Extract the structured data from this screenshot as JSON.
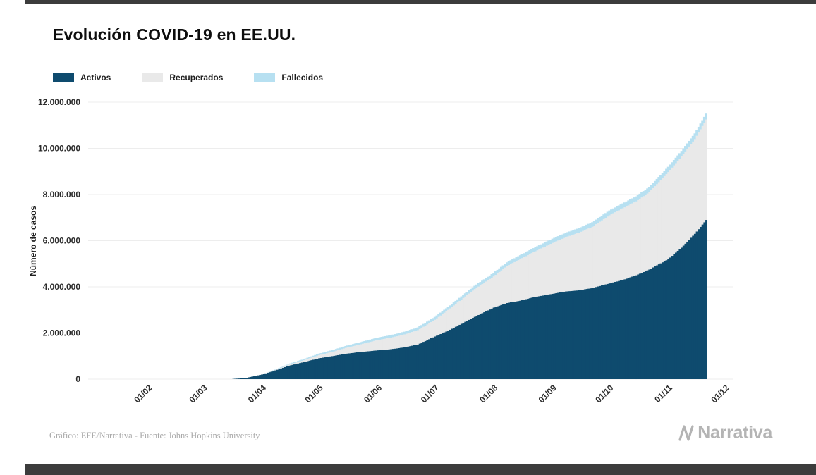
{
  "chart_data": {
    "type": "area",
    "stacked": true,
    "title": "Evolución COVID-19 en EE.UU.",
    "ylabel": "Número de casos",
    "ylim": [
      0,
      12000000
    ],
    "x_domain": [
      0,
      340
    ],
    "grid": "horizontal",
    "legend_position": "top-left",
    "series_order": [
      "activos",
      "recuperados",
      "fallecidos"
    ],
    "colors": {
      "activos": "#0e4b6e",
      "recuperados": "#e9e9e9",
      "fallecidos": "#b7e0f1"
    },
    "y_ticks": [
      {
        "value": 0,
        "label": "0"
      },
      {
        "value": 2000000,
        "label": "2.000.000"
      },
      {
        "value": 4000000,
        "label": "4.000.000"
      },
      {
        "value": 6000000,
        "label": "6.000.000"
      },
      {
        "value": 8000000,
        "label": "8.000.000"
      },
      {
        "value": 10000000,
        "label": "10.000.000"
      },
      {
        "value": 12000000,
        "label": "12.000.000"
      }
    ],
    "x_ticks": [
      {
        "day": 31,
        "label": "01/02"
      },
      {
        "day": 60,
        "label": "01/03"
      },
      {
        "day": 91,
        "label": "01/04"
      },
      {
        "day": 121,
        "label": "01/05"
      },
      {
        "day": 152,
        "label": "01/06"
      },
      {
        "day": 182,
        "label": "01/07"
      },
      {
        "day": 213,
        "label": "01/08"
      },
      {
        "day": 244,
        "label": "01/09"
      },
      {
        "day": 274,
        "label": "01/10"
      },
      {
        "day": 305,
        "label": "01/11"
      },
      {
        "day": 335,
        "label": "01/12"
      }
    ],
    "points": [
      {
        "day": 21,
        "activos": 0,
        "recuperados": 0,
        "fallecidos": 0
      },
      {
        "day": 61,
        "activos": 100,
        "recuperados": 10,
        "fallecidos": 6
      },
      {
        "day": 75,
        "activos": 4000,
        "recuperados": 100,
        "fallecidos": 90
      },
      {
        "day": 82,
        "activos": 42000,
        "recuperados": 400,
        "fallecidos": 600
      },
      {
        "day": 91,
        "activos": 200000,
        "recuperados": 8500,
        "fallecidos": 5100
      },
      {
        "day": 98,
        "activos": 380000,
        "recuperados": 21000,
        "fallecidos": 14700
      },
      {
        "day": 105,
        "activos": 580000,
        "recuperados": 50000,
        "fallecidos": 28000
      },
      {
        "day": 112,
        "activos": 720000,
        "recuperados": 75000,
        "fallecidos": 46000
      },
      {
        "day": 121,
        "activos": 905000,
        "recuperados": 135000,
        "fallecidos": 65000
      },
      {
        "day": 128,
        "activos": 1000000,
        "recuperados": 180000,
        "fallecidos": 77000
      },
      {
        "day": 135,
        "activos": 1100000,
        "recuperados": 250000,
        "fallecidos": 86000
      },
      {
        "day": 142,
        "activos": 1170000,
        "recuperados": 320000,
        "fallecidos": 95000
      },
      {
        "day": 152,
        "activos": 1250000,
        "recuperados": 445000,
        "fallecidos": 106000
      },
      {
        "day": 159,
        "activos": 1300000,
        "recuperados": 500000,
        "fallecidos": 111000
      },
      {
        "day": 166,
        "activos": 1380000,
        "recuperados": 560000,
        "fallecidos": 116000
      },
      {
        "day": 173,
        "activos": 1500000,
        "recuperados": 620000,
        "fallecidos": 120000
      },
      {
        "day": 182,
        "activos": 1850000,
        "recuperados": 720000,
        "fallecidos": 127000
      },
      {
        "day": 189,
        "activos": 2100000,
        "recuperados": 900000,
        "fallecidos": 131000
      },
      {
        "day": 196,
        "activos": 2400000,
        "recuperados": 1050000,
        "fallecidos": 137000
      },
      {
        "day": 203,
        "activos": 2700000,
        "recuperados": 1200000,
        "fallecidos": 143000
      },
      {
        "day": 213,
        "activos": 3100000,
        "recuperados": 1350000,
        "fallecidos": 155000
      },
      {
        "day": 220,
        "activos": 3300000,
        "recuperados": 1600000,
        "fallecidos": 161000
      },
      {
        "day": 227,
        "activos": 3400000,
        "recuperados": 1800000,
        "fallecidos": 169000
      },
      {
        "day": 234,
        "activos": 3550000,
        "recuperados": 1950000,
        "fallecidos": 176000
      },
      {
        "day": 244,
        "activos": 3700000,
        "recuperados": 2200000,
        "fallecidos": 187000
      },
      {
        "day": 251,
        "activos": 3800000,
        "recuperados": 2350000,
        "fallecidos": 190000
      },
      {
        "day": 258,
        "activos": 3850000,
        "recuperados": 2500000,
        "fallecidos": 196000
      },
      {
        "day": 265,
        "activos": 3950000,
        "recuperados": 2650000,
        "fallecidos": 201000
      },
      {
        "day": 274,
        "activos": 4150000,
        "recuperados": 2950000,
        "fallecidos": 209000
      },
      {
        "day": 281,
        "activos": 4300000,
        "recuperados": 3100000,
        "fallecidos": 213000
      },
      {
        "day": 288,
        "activos": 4500000,
        "recuperados": 3200000,
        "fallecidos": 218000
      },
      {
        "day": 295,
        "activos": 4750000,
        "recuperados": 3350000,
        "fallecidos": 223000
      },
      {
        "day": 305,
        "activos": 5200000,
        "recuperados": 3770000,
        "fallecidos": 231000
      },
      {
        "day": 312,
        "activos": 5700000,
        "recuperados": 3950000,
        "fallecidos": 238000
      },
      {
        "day": 319,
        "activos": 6300000,
        "recuperados": 4100000,
        "fallecidos": 247000
      },
      {
        "day": 325,
        "activos": 6900000,
        "recuperados": 4350000,
        "fallecidos": 256000
      }
    ]
  },
  "legend": {
    "items": [
      {
        "label": "Activos",
        "color": "#0e4b6e"
      },
      {
        "label": "Recuperados",
        "color": "#e9e9e9"
      },
      {
        "label": "Fallecidos",
        "color": "#b7e0f1"
      }
    ]
  },
  "footer": {
    "credit": "Gráfico: EFE/Narrativa - Fuente: Johns Hopkins University",
    "logo_text": "Narrativa"
  }
}
